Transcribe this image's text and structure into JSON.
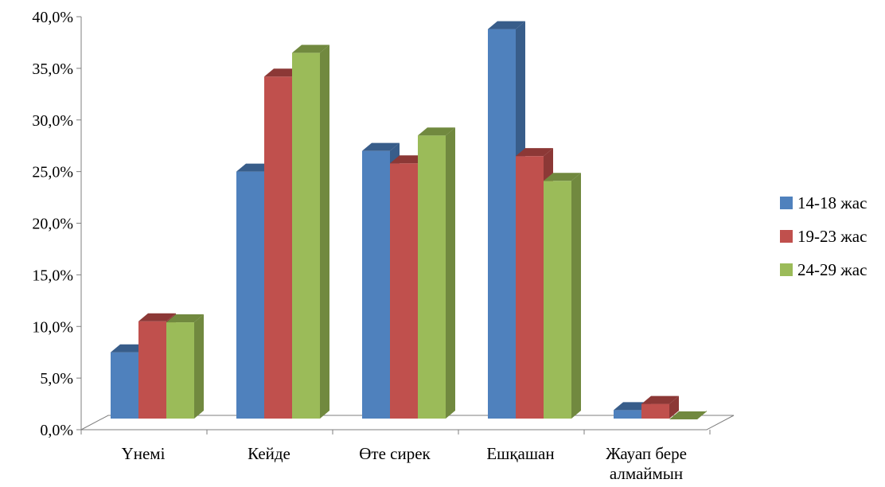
{
  "chart_data": {
    "type": "bar",
    "style": "3d-clustered-column",
    "categories": [
      "Үнемі",
      "Кейде",
      "Өте сирек",
      "Ешқашан",
      "Жауап бере алмаймын"
    ],
    "series": [
      {
        "name": "14-18 жас",
        "color": "#4F81BD",
        "side_color": "#385D8A",
        "values": [
          7.5,
          25.0,
          27.0,
          38.8,
          1.9
        ]
      },
      {
        "name": "19-23 жас",
        "color": "#C0504D",
        "side_color": "#8C3836",
        "values": [
          10.5,
          34.2,
          25.8,
          26.5,
          2.5
        ]
      },
      {
        "name": "24-29 жас",
        "color": "#9BBB59",
        "side_color": "#71893F",
        "values": [
          10.4,
          36.5,
          28.5,
          24.1,
          1.0
        ]
      }
    ],
    "y_ticks": [
      "0,0%",
      "5,0%",
      "10,0%",
      "15,0%",
      "20,0%",
      "25,0%",
      "30,0%",
      "35,0%",
      "40,0%"
    ],
    "ylim": [
      0,
      40
    ],
    "title": "",
    "xlabel": "",
    "ylabel": "",
    "grid": false,
    "legend_position": "right"
  }
}
